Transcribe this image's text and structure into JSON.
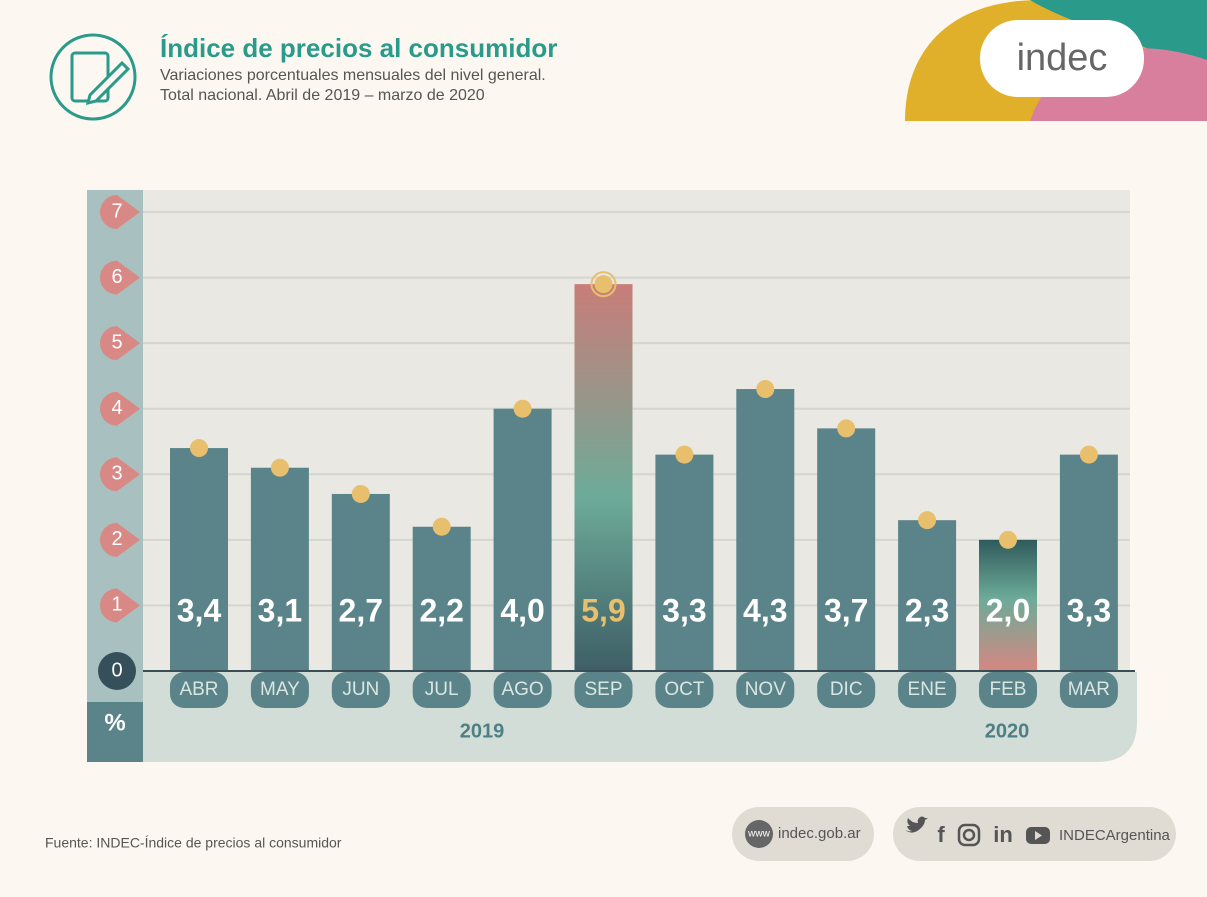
{
  "header": {
    "title": "Índice de precios al consumidor",
    "subtitle_lines": [
      "Variaciones porcentuales mensuales del nivel general.",
      "Total nacional. Abril de 2019 – marzo de 2020"
    ],
    "logo": "indec"
  },
  "chart_data": {
    "type": "bar",
    "categories": [
      "ABR",
      "MAY",
      "JUN",
      "JUL",
      "AGO",
      "SEP",
      "OCT",
      "NOV",
      "DIC",
      "ENE",
      "FEB",
      "MAR"
    ],
    "values": [
      3.4,
      3.1,
      2.7,
      2.2,
      4.0,
      5.9,
      3.3,
      4.3,
      3.7,
      2.3,
      2.0,
      3.3
    ],
    "value_labels": [
      "3,4",
      "3,1",
      "2,7",
      "2,2",
      "4,0",
      "5,9",
      "3,3",
      "4,3",
      "3,7",
      "2,3",
      "2,0",
      "3,3"
    ],
    "colors": [
      "#5a8489",
      "#5a8489",
      "#5a8489",
      "#5a8489",
      "#5a8489",
      "url(#g-sep)",
      "#5a8489",
      "#5a8489",
      "#5a8489",
      "#5a8489",
      "url(#g-feb)",
      "#5a8489"
    ],
    "value_label_colors": [
      "#ffffff",
      "#ffffff",
      "#ffffff",
      "#ffffff",
      "#ffffff",
      "#e8c06d",
      "#ffffff",
      "#ffffff",
      "#ffffff",
      "#ffffff",
      "#ffffff",
      "#ffffff"
    ],
    "marker_color": "#e8c06d",
    "ylim": [
      0,
      7
    ],
    "yticks": [
      0,
      1,
      2,
      3,
      4,
      5,
      6,
      7
    ],
    "grid": true,
    "unit": "%",
    "years": [
      "2019",
      "2020"
    ]
  },
  "footer": {
    "source": "Fuente: INDEC-Índice de precios al consumidor",
    "web_icon": "www",
    "web": "indec.gob.ar",
    "social": "INDECArgentina"
  }
}
